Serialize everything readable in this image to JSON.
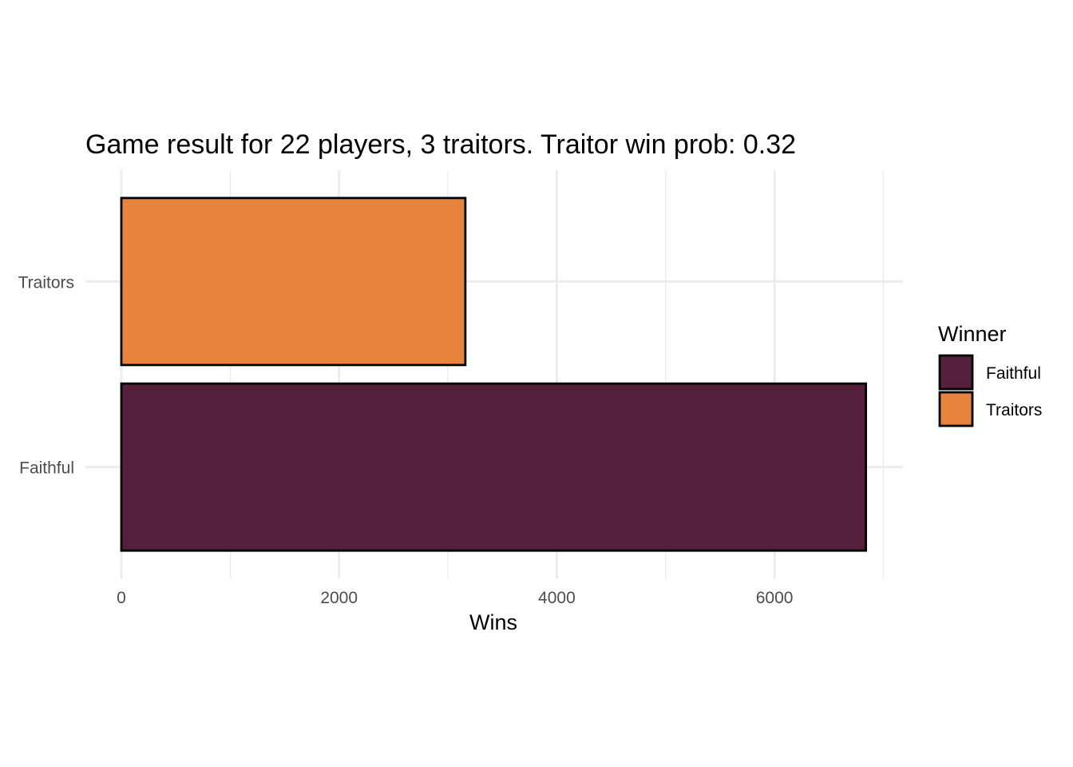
{
  "chart_data": {
    "type": "bar",
    "orientation": "horizontal",
    "title": "Game result for 22 players, 3 traitors. Traitor win prob: 0.32",
    "xlabel": "Wins",
    "ylabel": "",
    "categories": [
      "Faithful",
      "Traitors"
    ],
    "values": [
      6840,
      3160
    ],
    "colors": [
      "#561F3B",
      "#E8833E"
    ],
    "xlim": [
      -330,
      7180
    ],
    "xticks": [
      0,
      2000,
      4000,
      6000
    ],
    "xtick_labels": [
      "0",
      "2000",
      "4000",
      "6000"
    ],
    "grid": true,
    "legend": {
      "title": "Winner",
      "position": "right",
      "items": [
        {
          "label": "Faithful",
          "color": "#561F3B"
        },
        {
          "label": "Traitors",
          "color": "#E8833E"
        }
      ]
    }
  }
}
